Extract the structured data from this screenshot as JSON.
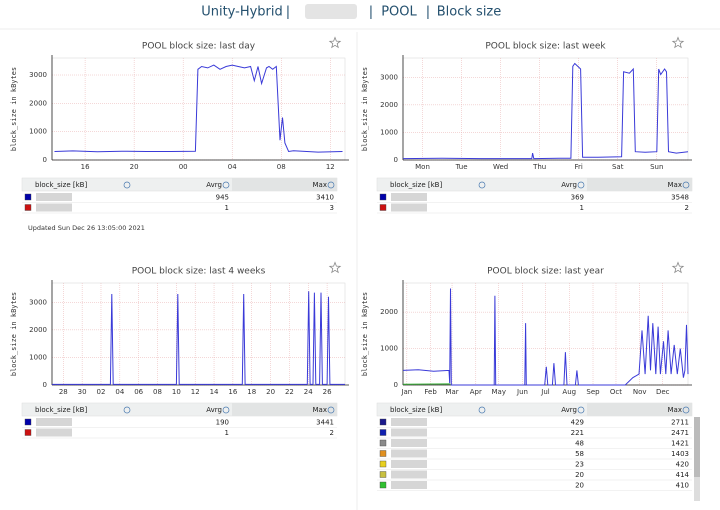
{
  "header": {
    "items": [
      "Unity-Hybrid",
      "|",
      "|",
      "POOL",
      "|",
      "Block size"
    ]
  },
  "updated": "Updated Sun Dec 26 13:05:00 2021",
  "chart_data": [
    {
      "type": "line",
      "title": "POOL block size: last day",
      "y_label": "block_size in kBytes",
      "xlim": [
        13.3,
        37.2
      ],
      "xticks": [
        16,
        20,
        {
          "value": 24,
          "label": "00"
        },
        {
          "value": 28,
          "label": "04"
        },
        {
          "value": 32,
          "label": "08"
        },
        {
          "value": 36,
          "label": "12"
        }
      ],
      "ylim": [
        0,
        3600
      ],
      "yticks": [
        0,
        1000,
        2000,
        3000
      ],
      "grid": true,
      "series": [
        {
          "color": "#3a3ad8",
          "x": [
            13.5,
            15,
            17,
            19,
            21,
            23,
            25,
            25.2,
            25.5,
            26,
            26.5,
            27,
            27.5,
            28,
            28.5,
            29,
            29.5,
            29.8,
            30.1,
            30.4,
            30.8,
            31,
            31.3,
            31.6,
            31.9,
            32.1,
            32.3,
            32.6,
            33,
            35,
            37
          ],
          "values": [
            300,
            320,
            290,
            310,
            300,
            300,
            310,
            3200,
            3300,
            3250,
            3350,
            3200,
            3300,
            3350,
            3300,
            3250,
            3300,
            2800,
            3300,
            2700,
            3250,
            3300,
            3200,
            3300,
            700,
            1500,
            600,
            300,
            330,
            280,
            300
          ]
        }
      ]
    },
    {
      "type": "line",
      "title": "POOL block size: last week",
      "y_label": "block_size in kBytes",
      "xlim": [
        0,
        7.3
      ],
      "xticks": [
        {
          "value": 0.5,
          "label": "Mon"
        },
        {
          "value": 1.5,
          "label": "Tue"
        },
        {
          "value": 2.5,
          "label": "Wed"
        },
        {
          "value": 3.5,
          "label": "Thu"
        },
        {
          "value": 4.5,
          "label": "Fri"
        },
        {
          "value": 5.5,
          "label": "Sat"
        },
        {
          "value": 6.5,
          "label": "Sun"
        }
      ],
      "ylim": [
        0,
        3700
      ],
      "yticks": [
        0,
        1000,
        2000,
        3000
      ],
      "grid": true,
      "series": [
        {
          "color": "#3a3ad8",
          "x": [
            0,
            1,
            2,
            3,
            3.3,
            3.32,
            3.35,
            4,
            4.3,
            4.35,
            4.4,
            4.55,
            4.6,
            5,
            5.6,
            5.65,
            5.8,
            5.9,
            5.95,
            6.2,
            6.5,
            6.55,
            6.6,
            6.7,
            6.75,
            6.8,
            7,
            7.3
          ],
          "values": [
            50,
            60,
            50,
            50,
            50,
            250,
            50,
            60,
            60,
            3400,
            3500,
            3300,
            100,
            100,
            120,
            3200,
            3150,
            3300,
            300,
            280,
            300,
            3300,
            3100,
            3300,
            3200,
            300,
            250,
            300
          ]
        }
      ]
    },
    {
      "type": "line",
      "title": "POOL block size: last 4 weeks",
      "y_label": "block_size in kBytes",
      "xlim": [
        -1.2,
        29.9
      ],
      "xticks": [
        {
          "value": 0,
          "label": "28"
        },
        {
          "value": 2,
          "label": "30"
        },
        {
          "value": 4,
          "label": "02"
        },
        {
          "value": 6,
          "label": "04"
        },
        {
          "value": 8,
          "label": "06"
        },
        {
          "value": 10,
          "label": "08"
        },
        {
          "value": 12,
          "label": "10"
        },
        {
          "value": 14,
          "label": "12"
        },
        {
          "value": 16,
          "label": "14"
        },
        {
          "value": 18,
          "label": "16"
        },
        {
          "value": 20,
          "label": "18"
        },
        {
          "value": 22,
          "label": "20"
        },
        {
          "value": 24,
          "label": "22"
        },
        {
          "value": 26,
          "label": "24"
        },
        {
          "value": 28,
          "label": "26"
        }
      ],
      "ylim": [
        0,
        3700
      ],
      "yticks": [
        0,
        1000,
        2000,
        3000
      ],
      "grid": true,
      "series": [
        {
          "color": "#3a3ad8",
          "x": [
            -1.2,
            5,
            5.15,
            5.3,
            12,
            12.15,
            12.3,
            19,
            19.15,
            19.3,
            25.9,
            26.05,
            26.2,
            26.5,
            26.65,
            26.8,
            27.2,
            27.35,
            27.5,
            28,
            28.15,
            28.3,
            29.9
          ],
          "values": [
            20,
            20,
            3300,
            20,
            20,
            3300,
            20,
            20,
            3300,
            20,
            20,
            3400,
            20,
            20,
            3350,
            20,
            20,
            3350,
            20,
            20,
            3200,
            20,
            20
          ]
        }
      ]
    },
    {
      "type": "line",
      "title": "POOL block size: last year",
      "y_label": "block_size in kBytes",
      "xlim": [
        10,
        382
      ],
      "xticks": [
        {
          "value": 15,
          "label": "Jan"
        },
        {
          "value": 46,
          "label": "Feb"
        },
        {
          "value": 74,
          "label": "Mar"
        },
        {
          "value": 105,
          "label": "Apr"
        },
        {
          "value": 135,
          "label": "May"
        },
        {
          "value": 166,
          "label": "Jun"
        },
        {
          "value": 196,
          "label": "Jul"
        },
        {
          "value": 227,
          "label": "Aug"
        },
        {
          "value": 258,
          "label": "Sep"
        },
        {
          "value": 288,
          "label": "Oct"
        },
        {
          "value": 319,
          "label": "Nov"
        },
        {
          "value": 349,
          "label": "Dec"
        }
      ],
      "ylim": [
        0,
        2800
      ],
      "yticks": [
        0,
        1000,
        2000
      ],
      "grid": true,
      "series": [
        {
          "color": "#3a3ad8",
          "x": [
            10,
            30,
            50,
            70,
            71,
            72,
            73,
            129,
            130,
            131,
            169,
            170,
            171,
            195,
            197,
            199,
            205,
            207,
            209,
            220,
            222,
            224,
            235,
            237,
            239,
            300,
            310,
            318,
            322,
            326,
            330,
            333,
            336,
            340,
            343,
            346,
            350,
            353,
            356,
            360,
            364,
            368,
            372,
            376,
            378,
            380,
            382
          ],
          "values": [
            400,
            420,
            380,
            400,
            50,
            2650,
            0,
            0,
            2450,
            0,
            0,
            1700,
            0,
            0,
            500,
            0,
            0,
            600,
            0,
            0,
            900,
            0,
            0,
            400,
            0,
            0,
            200,
            300,
            1500,
            300,
            1900,
            400,
            1700,
            300,
            1600,
            300,
            1200,
            300,
            1500,
            300,
            1100,
            300,
            1000,
            200,
            400,
            1650,
            300
          ]
        },
        {
          "color": "#33b033",
          "x": [
            10,
            70,
            72
          ],
          "values": [
            20,
            30,
            20
          ]
        }
      ]
    }
  ],
  "tables": [
    {
      "columns": [
        "block_size [kB]",
        "Avrg",
        "Max"
      ],
      "rows": [
        {
          "color": "#0000aa",
          "avg": 945,
          "max": 3410
        },
        {
          "color": "#cc1111",
          "avg": 1,
          "max": 3
        }
      ]
    },
    {
      "columns": [
        "block_size [kB]",
        "Avrg",
        "Max"
      ],
      "rows": [
        {
          "color": "#0000aa",
          "avg": 369,
          "max": 3548
        },
        {
          "color": "#cc1111",
          "avg": 1,
          "max": 2
        }
      ]
    },
    {
      "columns": [
        "block_size [kB]",
        "Avrg",
        "Max"
      ],
      "rows": [
        {
          "color": "#0000aa",
          "avg": 190,
          "max": 3441
        },
        {
          "color": "#cc1111",
          "avg": 1,
          "max": 2
        }
      ]
    },
    {
      "columns": [
        "block_size [kB]",
        "Avrg",
        "Max"
      ],
      "rows": [
        {
          "color": "#1a1a8c",
          "avg": 429,
          "max": 2711
        },
        {
          "color": "#1020b0",
          "avg": 221,
          "max": 2471
        },
        {
          "color": "#8a8a8a",
          "avg": 48,
          "max": 1421
        },
        {
          "color": "#e09020",
          "avg": 58,
          "max": 1403
        },
        {
          "color": "#e8d020",
          "avg": 23,
          "max": 420
        },
        {
          "color": "#c8c040",
          "avg": 20,
          "max": 414
        },
        {
          "color": "#30c030",
          "avg": 20,
          "max": 410
        }
      ]
    }
  ]
}
